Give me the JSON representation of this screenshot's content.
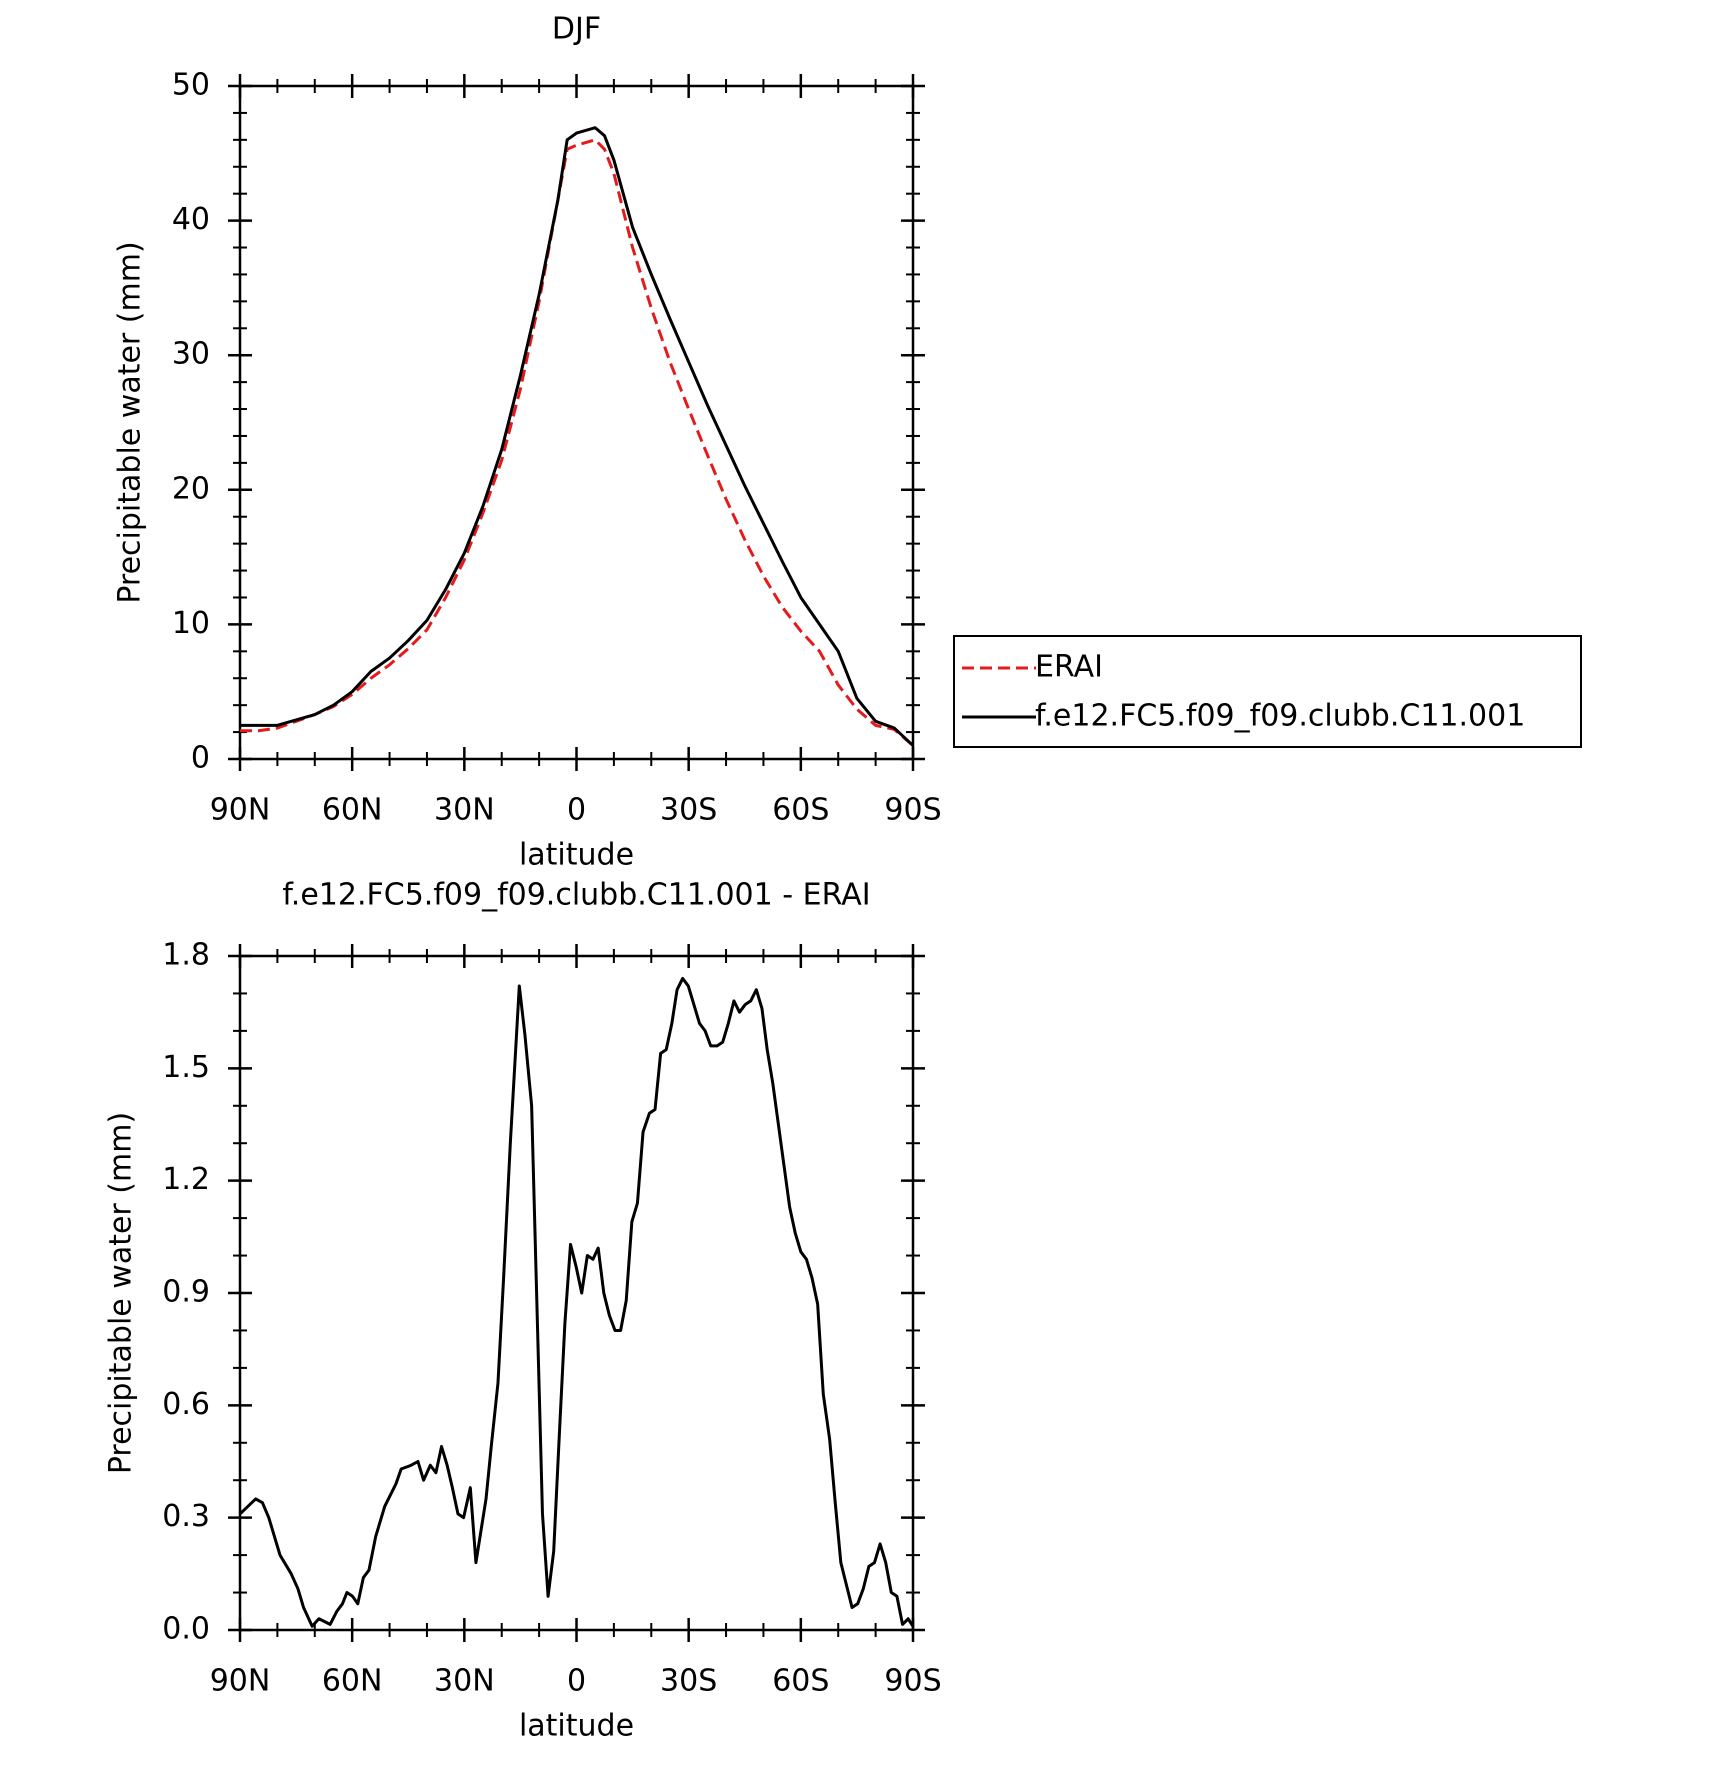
{
  "chart_data": [
    {
      "type": "line",
      "title": "DJF",
      "xlabel": "latitude",
      "ylabel": "Precipitable water (mm)",
      "x": [
        90,
        85,
        80,
        75,
        70,
        65,
        60,
        55,
        50,
        45,
        40,
        35,
        30,
        25,
        20,
        15,
        10,
        5,
        2.5,
        0,
        -5,
        -7.5,
        -10,
        -15,
        -20,
        -25,
        -30,
        -35,
        -40,
        -45,
        -50,
        -55,
        -60,
        -65,
        -70,
        -75,
        -80,
        -85,
        -90
      ],
      "series": [
        {
          "name": "ERAI",
          "color": "#e41a1c",
          "linestyle": "dashed",
          "values": [
            2.1,
            2.1,
            2.3,
            2.8,
            3.3,
            3.9,
            4.8,
            6.0,
            7.0,
            8.2,
            9.6,
            12.0,
            14.8,
            18.3,
            22.2,
            27.5,
            34.0,
            41.5,
            45.3,
            45.6,
            46.0,
            45.3,
            43.5,
            38.0,
            33.5,
            29.5,
            26.0,
            22.6,
            19.3,
            16.3,
            13.6,
            11.3,
            9.5,
            8.0,
            5.5,
            3.7,
            2.5,
            2.2,
            1.0
          ]
        },
        {
          "name": "f.e12.FC5.f09_f09.clubb.C11.001",
          "color": "#000000",
          "linestyle": "solid",
          "values": [
            2.5,
            2.5,
            2.5,
            2.9,
            3.3,
            4.0,
            5.0,
            6.5,
            7.5,
            8.8,
            10.3,
            12.6,
            15.3,
            18.8,
            23.0,
            28.5,
            34.5,
            41.5,
            46.0,
            46.5,
            46.9,
            46.3,
            44.5,
            39.5,
            36.0,
            32.7,
            29.5,
            26.3,
            23.3,
            20.3,
            17.5,
            14.7,
            12.0,
            10.0,
            8.0,
            4.5,
            2.8,
            2.3,
            1.0
          ]
        }
      ],
      "xlim": [
        90,
        -90
      ],
      "xticks": [
        {
          "value": 90,
          "label": "90N"
        },
        {
          "value": 60,
          "label": "60N"
        },
        {
          "value": 30,
          "label": "30N"
        },
        0,
        {
          "value": -30,
          "label": "30S"
        },
        {
          "value": -60,
          "label": "60S"
        },
        {
          "value": -90,
          "label": "90S"
        }
      ],
      "ylim": [
        0,
        50
      ],
      "yticks": [
        0,
        10,
        20,
        30,
        40,
        50
      ],
      "legend": "outside-right"
    },
    {
      "type": "line",
      "title": "f.e12.FC5.f09_f09.clubb.C11.001 - ERAI",
      "xlabel": "latitude",
      "ylabel": "Precipitable water (mm)",
      "x": [
        90,
        85.8,
        84,
        82.3,
        79.3,
        76.3,
        74.5,
        73,
        70.7,
        68.9,
        65.9,
        64.1,
        62.6,
        61.4,
        59.9,
        58.5,
        57,
        55.5,
        53.7,
        51.3,
        48.3,
        46.9,
        44.2,
        42.4,
        40.9,
        39.1,
        37.6,
        36.1,
        34.6,
        33.2,
        31.7,
        30.2,
        28.4,
        26.9,
        24.2,
        22.8,
        21,
        19.5,
        17.7,
        15.3,
        13.8,
        12,
        9.1,
        7.6,
        6.1,
        4.6,
        3.1,
        1.6,
        0.1,
        -1.4,
        -2.9,
        -4.4,
        -5.8,
        -7.3,
        -8.8,
        -10.3,
        -11.8,
        -13.3,
        -14.8,
        -16.3,
        -17.8,
        -19.5,
        -21,
        -22.5,
        -24,
        -25.5,
        -26.9,
        -28.4,
        -29.9,
        -31.4,
        -32.9,
        -34.4,
        -35.9,
        -37.6,
        -39.1,
        -40.6,
        -42.1,
        -43.6,
        -45.1,
        -46.6,
        -48.1,
        -49.6,
        -51,
        -52.5,
        -54,
        -55.5,
        -57,
        -58.5,
        -60,
        -61.5,
        -63,
        -64.5,
        -66,
        -67.7,
        -69.2,
        -70.7,
        -72.2,
        -73.7,
        -75.2,
        -76.7,
        -78.2,
        -79.7,
        -81.2,
        -82.7,
        -84.2,
        -85.7,
        -87.2,
        -88.7,
        -90
      ],
      "series": [
        {
          "name": "f.e12.FC5.f09_f09.clubb.C11.001 - ERAI",
          "color": "#000000",
          "linestyle": "solid",
          "values": [
            0.31,
            0.35,
            0.34,
            0.3,
            0.2,
            0.15,
            0.11,
            0.06,
            0.01,
            0.03,
            0.015,
            0.05,
            0.07,
            0.1,
            0.09,
            0.07,
            0.14,
            0.16,
            0.25,
            0.33,
            0.39,
            0.43,
            0.44,
            0.45,
            0.4,
            0.44,
            0.42,
            0.49,
            0.44,
            0.38,
            0.31,
            0.3,
            0.38,
            0.18,
            0.35,
            0.49,
            0.66,
            0.94,
            1.3,
            1.72,
            1.59,
            1.4,
            0.31,
            0.09,
            0.21,
            0.52,
            0.82,
            1.03,
            0.97,
            0.9,
            1.0,
            0.99,
            1.02,
            0.9,
            0.84,
            0.8,
            0.8,
            0.88,
            1.09,
            1.14,
            1.33,
            1.38,
            1.39,
            1.54,
            1.55,
            1.62,
            1.71,
            1.74,
            1.72,
            1.67,
            1.62,
            1.6,
            1.56,
            1.56,
            1.57,
            1.62,
            1.68,
            1.65,
            1.67,
            1.68,
            1.71,
            1.66,
            1.55,
            1.46,
            1.35,
            1.24,
            1.13,
            1.06,
            1.01,
            0.99,
            0.94,
            0.87,
            0.63,
            0.51,
            0.34,
            0.18,
            0.12,
            0.06,
            0.07,
            0.11,
            0.17,
            0.18,
            0.23,
            0.18,
            0.1,
            0.09,
            0.015,
            0.03,
            0.01
          ]
        }
      ],
      "xlim": [
        90,
        -90
      ],
      "xticks": [
        {
          "value": 90,
          "label": "90N"
        },
        {
          "value": 60,
          "label": "60N"
        },
        {
          "value": 30,
          "label": "30N"
        },
        0,
        {
          "value": -30,
          "label": "30S"
        },
        {
          "value": -60,
          "label": "60S"
        },
        {
          "value": -90,
          "label": "90S"
        }
      ],
      "ylim": [
        0,
        1.8
      ],
      "yticks": [
        {
          "value": 0,
          "label": "0.0"
        },
        0.3,
        0.6,
        0.9,
        1.2,
        1.5,
        1.8
      ]
    }
  ]
}
